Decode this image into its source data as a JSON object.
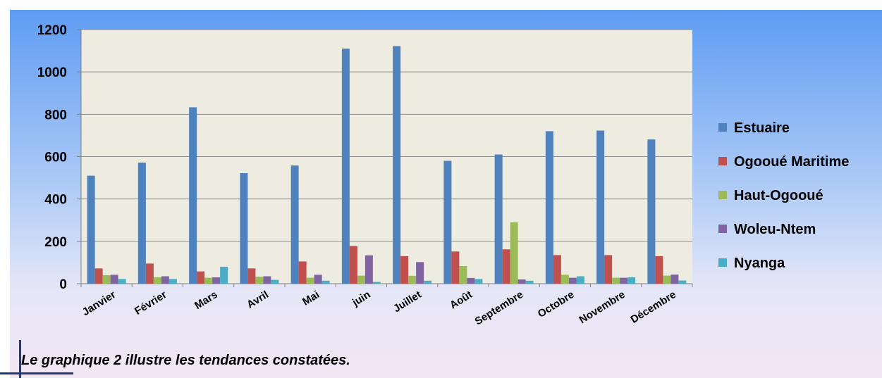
{
  "chart_data": {
    "type": "bar",
    "title": "",
    "xlabel": "",
    "ylabel": "",
    "ylim": [
      0,
      1200
    ],
    "yticks": [
      0,
      200,
      400,
      600,
      800,
      1000,
      1200
    ],
    "grid": true,
    "legend_position": "right",
    "categories": [
      "Janvier",
      "Février",
      "Mars",
      "Avril",
      "Mai",
      "juin",
      "Juillet",
      "Août",
      "Septembre",
      "Octobre",
      "Novembre",
      "Décembre"
    ],
    "series": [
      {
        "name": "Estuaire",
        "color": "#4f81bd",
        "values": [
          510,
          572,
          833,
          522,
          558,
          1110,
          1122,
          580,
          610,
          720,
          723,
          681
        ]
      },
      {
        "name": "Ogooué Maritime",
        "color": "#c0504d",
        "values": [
          72,
          95,
          58,
          72,
          105,
          178,
          130,
          152,
          162,
          135,
          135,
          130
        ]
      },
      {
        "name": "Haut-Ogooué",
        "color": "#9bbb59",
        "values": [
          40,
          30,
          28,
          33,
          28,
          38,
          37,
          83,
          290,
          42,
          28,
          38
        ]
      },
      {
        "name": "Woleu-Ntem",
        "color": "#8064a2",
        "values": [
          42,
          35,
          30,
          35,
          42,
          134,
          102,
          27,
          20,
          28,
          28,
          43
        ]
      },
      {
        "name": "Nyanga",
        "color": "#4bacc6",
        "values": [
          22,
          22,
          80,
          18,
          14,
          8,
          14,
          22,
          14,
          35,
          30,
          15
        ]
      }
    ]
  },
  "caption": "Le graphique 2 illustre les tendances constatées.",
  "colors": {
    "plot_background": "#eeece1",
    "gridline": "#8a8a8a",
    "axis": "#7f7f7f"
  }
}
